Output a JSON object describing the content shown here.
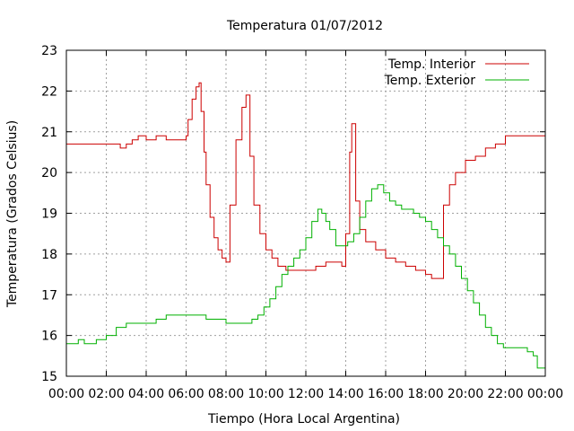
{
  "chart_data": {
    "type": "line",
    "title": "Temperatura 01/07/2012",
    "xlabel": "Tiempo (Hora Local Argentina)",
    "ylabel": "Temperatura (Grados Celsius)",
    "xlim": [
      0,
      24
    ],
    "ylim": [
      15,
      23
    ],
    "grid": true,
    "legend_position": "top-right",
    "x_ticks": [
      0,
      2,
      4,
      6,
      8,
      10,
      12,
      14,
      16,
      18,
      20,
      22,
      24
    ],
    "x_tick_labels": [
      "00:00",
      "02:00",
      "04:00",
      "06:00",
      "08:00",
      "10:00",
      "12:00",
      "14:00",
      "16:00",
      "18:00",
      "20:00",
      "22:00",
      "00:00"
    ],
    "y_ticks": [
      15,
      16,
      17,
      18,
      19,
      20,
      21,
      22,
      23
    ],
    "y_tick_labels": [
      "15",
      "16",
      "17",
      "18",
      "19",
      "20",
      "21",
      "22",
      "23"
    ],
    "series": [
      {
        "name": "Temp. Interior",
        "color": "#cc0000",
        "x": [
          0,
          0.5,
          1,
          1.5,
          2,
          2.5,
          2.7,
          3,
          3.3,
          3.6,
          4,
          4.5,
          5,
          5.5,
          5.9,
          6.0,
          6.1,
          6.3,
          6.5,
          6.65,
          6.75,
          6.9,
          7.0,
          7.2,
          7.4,
          7.6,
          7.8,
          8.0,
          8.2,
          8.5,
          8.8,
          9.0,
          9.2,
          9.4,
          9.7,
          10.0,
          10.3,
          10.6,
          11.0,
          11.5,
          12.0,
          12.5,
          13.0,
          13.5,
          13.8,
          14.0,
          14.2,
          14.3,
          14.5,
          14.7,
          15.0,
          15.5,
          16.0,
          16.5,
          17.0,
          17.5,
          18.0,
          18.3,
          18.6,
          18.9,
          19.2,
          19.5,
          20.0,
          20.5,
          21.0,
          21.5,
          22.0,
          22.5,
          23.0,
          23.5,
          24.0
        ],
        "y": [
          20.7,
          20.7,
          20.7,
          20.7,
          20.7,
          20.7,
          20.6,
          20.7,
          20.8,
          20.9,
          20.8,
          20.9,
          20.8,
          20.8,
          20.8,
          20.9,
          21.3,
          21.8,
          22.1,
          22.2,
          21.5,
          20.5,
          19.7,
          18.9,
          18.4,
          18.1,
          17.9,
          17.8,
          19.2,
          20.8,
          21.6,
          21.9,
          20.4,
          19.2,
          18.5,
          18.1,
          17.9,
          17.7,
          17.6,
          17.6,
          17.6,
          17.7,
          17.8,
          17.8,
          17.7,
          18.5,
          20.5,
          21.2,
          19.3,
          18.6,
          18.3,
          18.1,
          17.9,
          17.8,
          17.7,
          17.6,
          17.5,
          17.4,
          17.4,
          19.2,
          19.7,
          20.0,
          20.3,
          20.4,
          20.6,
          20.7,
          20.9,
          20.9,
          20.9,
          20.9,
          20.9
        ]
      },
      {
        "name": "Temp. Exterior",
        "color": "#00b000",
        "x": [
          0,
          0.3,
          0.6,
          0.9,
          1.2,
          1.5,
          2.0,
          2.5,
          3.0,
          3.5,
          4.0,
          4.5,
          5.0,
          5.5,
          6.0,
          6.5,
          7.0,
          7.5,
          8.0,
          8.5,
          9.0,
          9.3,
          9.6,
          9.9,
          10.2,
          10.5,
          10.8,
          11.1,
          11.4,
          11.7,
          12.0,
          12.3,
          12.6,
          12.8,
          13.0,
          13.2,
          13.5,
          13.8,
          14.1,
          14.4,
          14.7,
          15.0,
          15.3,
          15.6,
          15.9,
          16.2,
          16.5,
          16.8,
          17.1,
          17.4,
          17.7,
          18.0,
          18.3,
          18.6,
          18.9,
          19.2,
          19.5,
          19.8,
          20.1,
          20.4,
          20.7,
          21.0,
          21.3,
          21.6,
          21.9,
          22.2,
          22.5,
          22.8,
          23.1,
          23.4,
          23.6,
          24.0
        ],
        "y": [
          15.8,
          15.8,
          15.9,
          15.8,
          15.8,
          15.9,
          16.0,
          16.2,
          16.3,
          16.3,
          16.3,
          16.4,
          16.5,
          16.5,
          16.5,
          16.5,
          16.4,
          16.4,
          16.3,
          16.3,
          16.3,
          16.4,
          16.5,
          16.7,
          16.9,
          17.2,
          17.5,
          17.7,
          17.9,
          18.1,
          18.4,
          18.8,
          19.1,
          19.0,
          18.8,
          18.6,
          18.2,
          18.2,
          18.3,
          18.5,
          18.9,
          19.3,
          19.6,
          19.7,
          19.5,
          19.3,
          19.2,
          19.1,
          19.1,
          19.0,
          18.9,
          18.8,
          18.6,
          18.4,
          18.2,
          18.0,
          17.7,
          17.4,
          17.1,
          16.8,
          16.5,
          16.2,
          16.0,
          15.8,
          15.7,
          15.7,
          15.7,
          15.7,
          15.6,
          15.5,
          15.2,
          15.2
        ]
      }
    ]
  }
}
